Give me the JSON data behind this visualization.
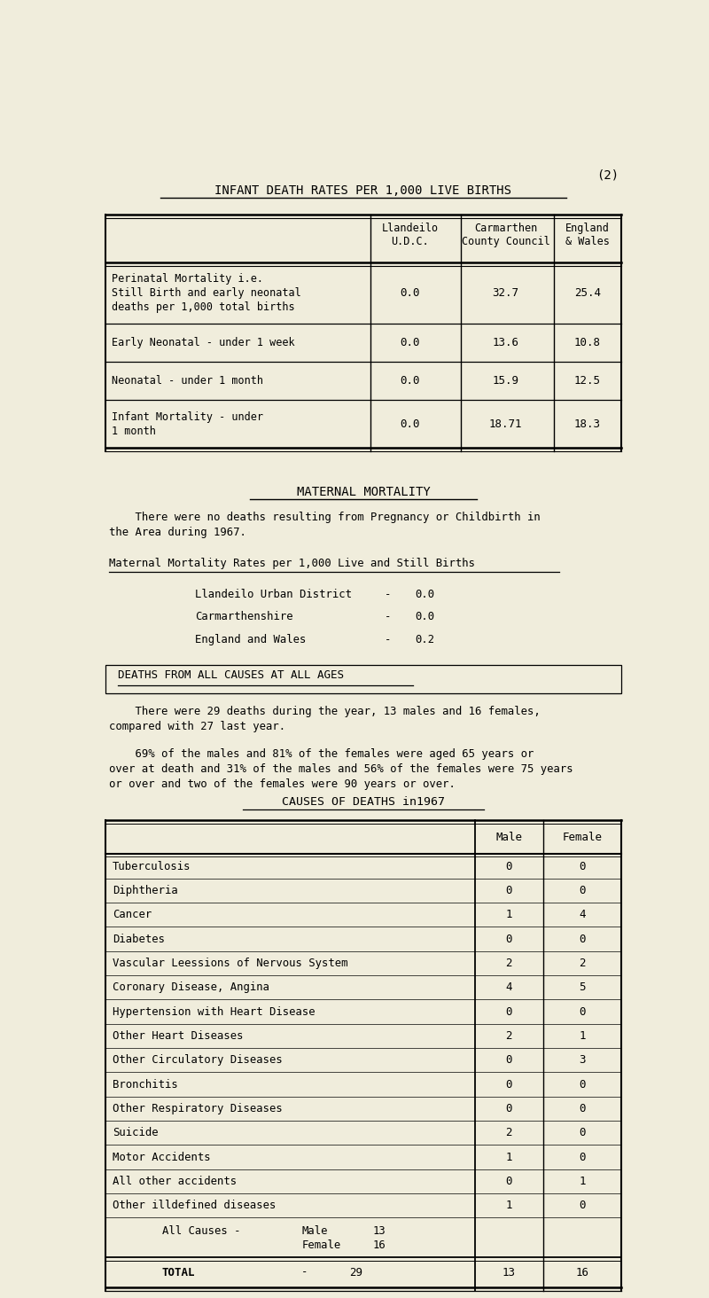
{
  "bg_color": "#f0eddc",
  "title": "INFANT DEATH RATES PER 1,000 LIVE BIRTHS",
  "page_num": "(2)",
  "table1_rows": [
    [
      "Perinatal Mortality i.e.\nStill Birth and early neonatal\ndeaths per 1,000 total births",
      "0.0",
      "32.7",
      "25.4"
    ],
    [
      "Early Neonatal - under 1 week",
      "0.0",
      "13.6",
      "10.8"
    ],
    [
      "Neonatal - under 1 month",
      "0.0",
      "15.9",
      "12.5"
    ],
    [
      "Infant Mortality - under\n1 month",
      "0.0",
      "18.71",
      "18.3"
    ]
  ],
  "maternal_title": "MATERNAL MORTALITY",
  "maternal_text1": "    There were no deaths resulting from Pregnancy or Childbirth in\nthe Area during 1967.",
  "maternal_subtitle": "Maternal Mortality Rates per 1,000 Live and Still Births",
  "maternal_rates": [
    [
      "Llandeilo Urban District",
      "-",
      "0.0"
    ],
    [
      "Carmarthenshire",
      "-",
      "0.0"
    ],
    [
      "England and Wales",
      "-",
      "0.2"
    ]
  ],
  "deaths_title": "DEATHS FROM ALL CAUSES AT ALL AGES",
  "deaths_text1": "    There were 29 deaths during the year, 13 males and 16 females,\ncompared with 27 last year.",
  "deaths_text2": "    69% of the males and 81% of the females were aged 65 years or\nover at death and 31% of the males and 56% of the females were 75 years\nor over and two of the females were 90 years or over.",
  "causes_title": "CAUSES OF DEATHS in1967",
  "causes_rows": [
    [
      "Tuberculosis",
      "0",
      "0"
    ],
    [
      "Diphtheria",
      "0",
      "0"
    ],
    [
      "Cancer",
      "1",
      "4"
    ],
    [
      "Diabetes",
      "0",
      "0"
    ],
    [
      "Vascular Leessions of Nervous System",
      "2",
      "2"
    ],
    [
      "Coronary Disease, Angina",
      "4",
      "5"
    ],
    [
      "Hypertension with Heart Disease",
      "0",
      "0"
    ],
    [
      "Other Heart Diseases",
      "2",
      "1"
    ],
    [
      "Other Circulatory Diseases",
      "0",
      "3"
    ],
    [
      "Bronchitis",
      "0",
      "0"
    ],
    [
      "Other Respiratory Diseases",
      "0",
      "0"
    ],
    [
      "Suicide",
      "2",
      "0"
    ],
    [
      "Motor Accidents",
      "1",
      "0"
    ],
    [
      "All other accidents",
      "0",
      "1"
    ],
    [
      "Other illdefined diseases",
      "1",
      "0"
    ]
  ]
}
